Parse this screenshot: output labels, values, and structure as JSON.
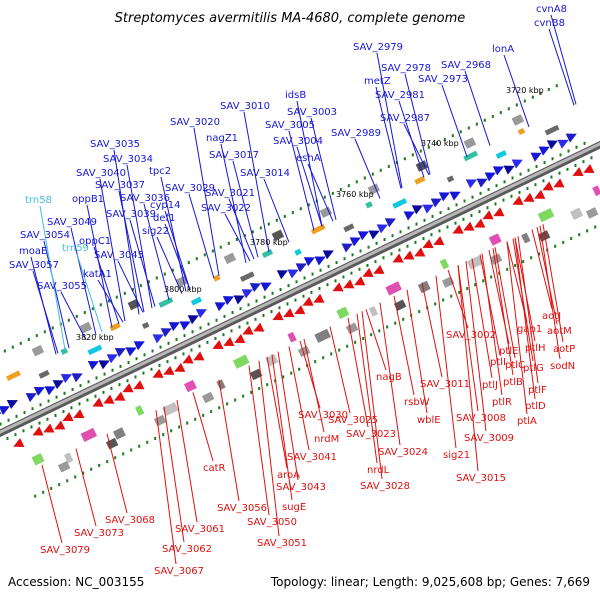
{
  "title": "Streptomyces avermitilis MA-4680, complete genome",
  "footer": {
    "accession": "Accession: NC_003155",
    "summary": "Topology: linear; Length: 9,025,608 bp; Genes: 7,669"
  },
  "colors": {
    "forward": "#1616d6",
    "reverse": "#e01010",
    "rna": "#44c0d8",
    "backbone": "#8a8a8a",
    "tick": "#1a7a1a"
  },
  "kbp_labels": [
    "3720 kbp",
    "3740 kbp",
    "3760 kbp",
    "3780 kbp",
    "3800 kbp",
    "3820 kbp"
  ],
  "forward_genes": [
    "cvnA8",
    "cvnB8",
    "lonA",
    "SAV_2968",
    "SAV_2973",
    "SAV_2979",
    "SAV_2978",
    "metZ",
    "SAV_2981",
    "SAV_2987",
    "SAV_2989",
    "idsB",
    "SAV_3003",
    "SAV_3005",
    "SAV_3004",
    "eshA",
    "SAV_3010",
    "SAV_3020",
    "nagZ1",
    "SAV_3017",
    "SAV_3014",
    "SAV_3035",
    "SAV_3034",
    "tpc2",
    "SAV_3029",
    "SAV_3021",
    "SAV_3022",
    "SAV_3040",
    "SAV_3037",
    "SAV_3036",
    "cyp14",
    "def1",
    "sig22",
    "oppB1",
    "SAV_3039",
    "SAV_3049",
    "SAV_3054",
    "oppC1",
    "SAV_3045",
    "moaE",
    "SAV_3057",
    "katA1",
    "SAV_3055"
  ],
  "rna_genes": [
    "trn58",
    "trn59"
  ],
  "reverse_genes": [
    "aotJ",
    "aotM",
    "aotP",
    "gap1",
    "sodN",
    "ptlH",
    "ptlG",
    "ptlF",
    "ptlE",
    "ptlC",
    "ptlB",
    "ptlD",
    "SAV_3002",
    "ptlI",
    "ptlJ",
    "ptlR",
    "ptlA",
    "SAV_3011",
    "rsbW",
    "SAV_3008",
    "SAV_3009",
    "nagB",
    "wblE",
    "sig21",
    "SAV_3015",
    "SAV_3030",
    "SAV_3025",
    "SAV_3023",
    "SAV_3024",
    "nrdM",
    "nrdL",
    "SAV_3028",
    "SAV_3041",
    "catR",
    "aroA",
    "SAV_3043",
    "SAV_3056",
    "sugE",
    "SAV_3050",
    "SAV_3051",
    "SAV_3061",
    "SAV_3062",
    "SAV_3068",
    "SAV_3067",
    "SAV_3073",
    "SAV_3079"
  ]
}
